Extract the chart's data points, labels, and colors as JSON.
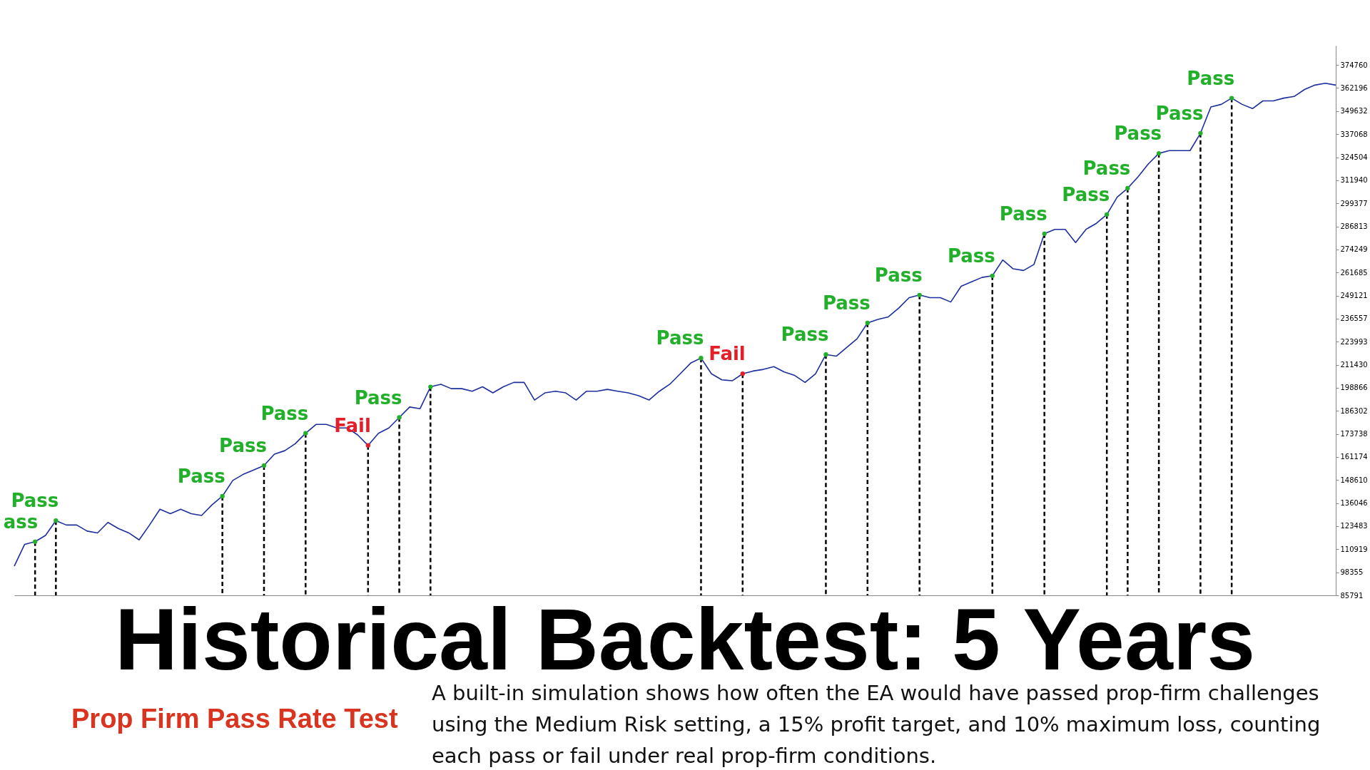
{
  "chart_data": {
    "type": "line",
    "title": "Historical Backtest: 5 Years",
    "subtitle": "Prop Firm Pass Rate Test",
    "annotations": [
      "A built-in simulation shows how often the EA would have passed prop-firm challenges using the Medium Risk setting, a 15% profit target, and 10% maximum loss, counting each pass or fail under real prop-firm conditions."
    ],
    "categories": [
      null,
      null,
      null,
      null,
      null,
      null,
      null,
      null,
      null,
      null,
      null,
      null,
      null,
      null,
      null,
      null,
      null,
      null,
      null,
      null,
      null,
      null,
      null,
      null,
      null,
      null,
      null,
      null,
      null,
      null,
      null,
      null,
      null,
      null,
      null,
      null,
      null,
      null,
      null,
      null,
      null,
      null,
      null,
      null,
      null,
      null,
      null,
      null,
      null,
      null,
      null,
      null,
      null,
      null,
      null,
      null,
      null,
      null,
      null,
      null,
      null,
      null,
      null,
      null,
      null,
      null,
      null,
      null,
      null,
      null,
      null,
      null,
      null,
      null,
      null,
      null,
      null,
      null,
      null,
      null,
      null,
      null,
      null,
      null,
      null,
      null,
      null,
      null,
      null,
      null,
      null,
      null,
      null,
      null,
      null,
      null,
      null,
      null,
      null,
      null,
      null,
      null,
      null,
      null,
      null,
      null,
      null,
      null,
      null,
      null,
      null,
      null,
      null,
      null,
      null,
      null,
      null,
      null,
      null,
      null,
      null,
      null,
      null,
      null,
      null,
      null,
      null,
      null
    ],
    "series": [
      {
        "color": "#1c2f9c",
        "values": [
          101700,
          113600,
          115000,
          118400,
          126500,
          124100,
          124100,
          120800,
          119800,
          125500,
          122200,
          119800,
          116000,
          124100,
          132700,
          130300,
          132700,
          130300,
          129300,
          135100,
          139800,
          148400,
          151700,
          154100,
          156500,
          162700,
          164600,
          168400,
          174100,
          178900,
          178900,
          177000,
          177000,
          173200,
          167500,
          174100,
          177000,
          182700,
          188400,
          187500,
          199400,
          200800,
          198400,
          198400,
          197000,
          199400,
          196100,
          199400,
          201800,
          201800,
          192200,
          196100,
          197000,
          196100,
          192200,
          197000,
          197000,
          198000,
          197000,
          196100,
          194600,
          192200,
          197000,
          200800,
          206500,
          212300,
          215100,
          206500,
          203200,
          202700,
          206500,
          208000,
          208900,
          210400,
          207500,
          205600,
          201800,
          206500,
          217000,
          216100,
          220800,
          225600,
          234200,
          236100,
          237500,
          242300,
          248000,
          249400,
          248000,
          248000,
          245600,
          254200,
          256600,
          259000,
          259900,
          268500,
          263700,
          262800,
          266100,
          282800,
          285200,
          285200,
          278000,
          285200,
          288500,
          293300,
          302800,
          307600,
          313800,
          320900,
          326600,
          328100,
          328100,
          328100,
          337600,
          351900,
          353300,
          356700,
          353300,
          351000,
          355200,
          355200,
          356700,
          357600,
          361400,
          363800,
          364800,
          363800
        ]
      },
      {
        "type": "lollipop",
        "color": "#22b02a",
        "line_style": "dashed",
        "values": [
          null,
          null,
          115000,
          null,
          126500,
          null,
          null,
          null,
          null,
          null,
          null,
          null,
          null,
          null,
          null,
          null,
          null,
          null,
          null,
          null,
          139800,
          null,
          null,
          null,
          156500,
          null,
          null,
          null,
          174100,
          null,
          null,
          null,
          null,
          null,
          null,
          null,
          null,
          182700,
          null,
          null,
          199400,
          null,
          null,
          null,
          null,
          null,
          null,
          null,
          null,
          null,
          null,
          null,
          null,
          null,
          null,
          null,
          null,
          null,
          null,
          null,
          null,
          null,
          null,
          null,
          null,
          null,
          215100,
          null,
          null,
          null,
          null,
          null,
          null,
          null,
          null,
          null,
          null,
          null,
          217000,
          null,
          null,
          null,
          234200,
          null,
          null,
          null,
          null,
          249400,
          null,
          null,
          null,
          null,
          null,
          null,
          259900,
          null,
          null,
          null,
          null,
          282800,
          null,
          null,
          null,
          null,
          null,
          293300,
          null,
          307600,
          null,
          null,
          326600,
          null,
          null,
          null,
          337600,
          null,
          null,
          356700,
          null,
          null,
          null,
          null,
          null,
          null,
          null,
          null,
          null,
          null
        ],
        "value_labels": [
          null,
          null,
          "ass",
          null,
          "Pass",
          null,
          null,
          null,
          null,
          null,
          null,
          null,
          null,
          null,
          null,
          null,
          null,
          null,
          null,
          null,
          "Pass",
          null,
          null,
          null,
          "Pass",
          null,
          null,
          null,
          "Pass",
          null,
          null,
          null,
          null,
          null,
          null,
          null,
          null,
          "Pass",
          null,
          null,
          null,
          null,
          null,
          null,
          null,
          null,
          null,
          null,
          null,
          null,
          null,
          null,
          null,
          null,
          null,
          null,
          null,
          null,
          null,
          null,
          null,
          null,
          null,
          null,
          null,
          null,
          "Pass",
          null,
          null,
          null,
          null,
          null,
          null,
          null,
          null,
          null,
          null,
          null,
          "Pass",
          null,
          null,
          null,
          "Pass",
          null,
          null,
          null,
          null,
          "Pass",
          null,
          null,
          null,
          null,
          null,
          null,
          "Pass",
          null,
          null,
          null,
          null,
          "Pass",
          null,
          null,
          null,
          null,
          null,
          "Pass",
          null,
          "Pass",
          null,
          null,
          "Pass",
          null,
          null,
          null,
          "Pass",
          null,
          null,
          "Pass",
          null,
          null,
          null,
          null,
          null,
          null,
          null,
          null,
          null,
          null
        ]
      },
      {
        "type": "lollipop",
        "color": "#e3202a",
        "line_style": "dashed",
        "values": [
          null,
          null,
          null,
          null,
          null,
          null,
          null,
          null,
          null,
          null,
          null,
          null,
          null,
          null,
          null,
          null,
          null,
          null,
          null,
          null,
          null,
          null,
          null,
          null,
          null,
          null,
          null,
          null,
          null,
          null,
          null,
          null,
          null,
          null,
          167500,
          null,
          null,
          null,
          null,
          null,
          null,
          null,
          null,
          null,
          null,
          null,
          null,
          null,
          null,
          null,
          null,
          null,
          null,
          null,
          null,
          null,
          null,
          null,
          null,
          null,
          null,
          null,
          null,
          null,
          null,
          null,
          null,
          null,
          null,
          null,
          206500,
          null,
          null,
          null,
          null,
          null,
          null,
          null,
          null,
          null,
          null,
          null,
          null,
          null,
          null,
          null,
          null,
          null,
          null,
          null,
          null,
          null,
          null,
          null,
          null,
          null,
          null,
          null,
          null,
          null,
          null,
          null,
          null,
          null,
          null,
          null,
          null,
          null,
          null,
          null,
          null,
          null,
          null,
          null,
          null,
          null,
          null,
          null,
          null,
          null,
          null,
          null,
          null,
          null,
          null,
          null,
          null,
          null
        ],
        "value_labels": [
          null,
          null,
          null,
          null,
          null,
          null,
          null,
          null,
          null,
          null,
          null,
          null,
          null,
          null,
          null,
          null,
          null,
          null,
          null,
          null,
          null,
          null,
          null,
          null,
          null,
          null,
          null,
          null,
          null,
          null,
          null,
          null,
          null,
          null,
          "Fail",
          null,
          null,
          null,
          null,
          null,
          null,
          null,
          null,
          null,
          null,
          null,
          null,
          null,
          null,
          null,
          null,
          null,
          null,
          null,
          null,
          null,
          null,
          null,
          null,
          null,
          null,
          null,
          null,
          null,
          null,
          null,
          null,
          null,
          null,
          null,
          "Fail",
          null,
          null,
          null,
          null,
          null,
          null,
          null,
          null,
          null,
          null,
          null,
          null,
          null,
          null,
          null,
          null,
          null,
          null,
          null,
          null,
          null,
          null,
          null,
          null,
          null,
          null,
          null,
          null,
          null,
          null,
          null,
          null,
          null,
          null,
          null,
          null,
          null,
          null,
          null,
          null,
          null,
          null,
          null,
          null,
          null,
          null,
          null,
          null,
          null,
          null,
          null,
          null,
          null,
          null,
          null,
          null,
          null
        ]
      }
    ],
    "ylim": [
      85791,
      385300
    ],
    "yticks": [
      85791,
      98355,
      110919,
      123483,
      136046,
      148610,
      161174,
      173738,
      186302,
      198866,
      211430,
      223993,
      236557,
      249121,
      261685,
      274249,
      286813,
      299377,
      311940,
      324504,
      337068,
      349632,
      362196,
      374760
    ],
    "tick_labels": "y",
    "grid": false
  }
}
